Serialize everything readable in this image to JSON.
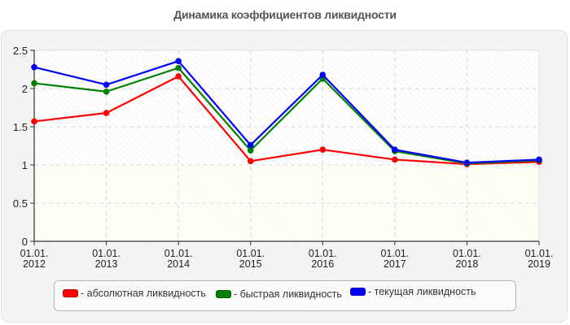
{
  "chart_data": {
    "type": "line",
    "title": "Динамика коэффициентов ликвидности",
    "xlabel": "",
    "ylabel": "",
    "categories": [
      "01.01.2012",
      "01.01.2013",
      "01.01.2014",
      "01.01.2015",
      "01.01.2016",
      "01.01.2017",
      "01.01.2018",
      "01.01.2019"
    ],
    "x_tick_labels": [
      [
        "01.01.",
        "2012"
      ],
      [
        "01.01.",
        "2013"
      ],
      [
        "01.01.",
        "2014"
      ],
      [
        "01.01.",
        "2015"
      ],
      [
        "01.01.",
        "2016"
      ],
      [
        "01.01.",
        "2017"
      ],
      [
        "01.01.",
        "2018"
      ],
      [
        "01.01.",
        "2019"
      ]
    ],
    "y_ticks": [
      "0",
      "0.5",
      "1",
      "1.5",
      "2",
      "2.5"
    ],
    "ylim": [
      0,
      2.5
    ],
    "grid": true,
    "legend_position": "bottom",
    "series": [
      {
        "name": "абсолютная ликвидность",
        "color": "#ff0000",
        "values": [
          1.57,
          1.68,
          2.16,
          1.05,
          1.2,
          1.07,
          1.01,
          1.04
        ]
      },
      {
        "name": "быстрая ликвидность",
        "color": "#008000",
        "values": [
          2.07,
          1.96,
          2.27,
          1.19,
          2.13,
          1.18,
          1.02,
          1.06
        ]
      },
      {
        "name": "текущая ликвидность",
        "color": "#0000ff",
        "values": [
          2.28,
          2.05,
          2.36,
          1.26,
          2.18,
          1.2,
          1.03,
          1.07
        ]
      }
    ]
  },
  "legend": {
    "items": [
      {
        "label": "- абсолютная ликвидность",
        "color": "#ff0000"
      },
      {
        "label": "- быстрая ликвидность",
        "color": "#008000"
      },
      {
        "label": "- текущая ликвидность",
        "color": "#0000ff"
      }
    ]
  }
}
